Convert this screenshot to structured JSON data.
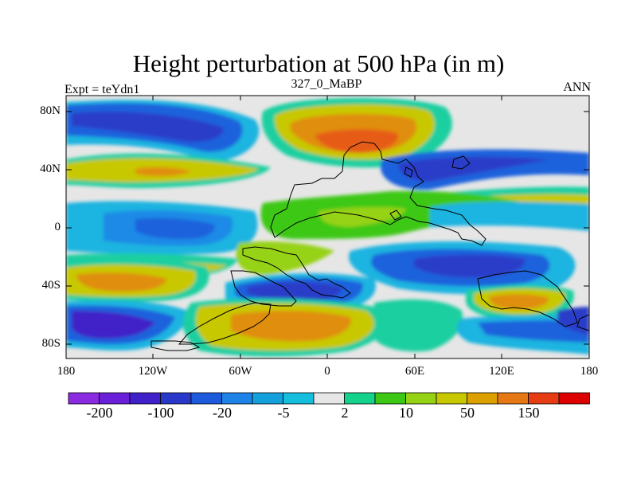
{
  "title": "Height perturbation at 500 hPa (in m)",
  "subtitle_left": "Expt = teYdn1",
  "subtitle_center": "327_0_MaBP",
  "subtitle_right": "ANN",
  "y_ticks": [
    "80N",
    "40N",
    "0",
    "40S",
    "80S"
  ],
  "x_ticks": [
    "180",
    "120W",
    "60W",
    "0",
    "60E",
    "120E",
    "180"
  ],
  "colorbar": {
    "colors": [
      "#8a2be2",
      "#6a20d8",
      "#4020c8",
      "#2838c8",
      "#1e5adc",
      "#1e82e6",
      "#14a0dc",
      "#14bedc",
      "#e6e6e6",
      "#14d28c",
      "#3cc814",
      "#96d214",
      "#c8c800",
      "#dca000",
      "#e67814",
      "#e63c14",
      "#dc0000"
    ],
    "labels": [
      "-200",
      "-100",
      "-20",
      "-5",
      "2",
      "10",
      "50",
      "150"
    ]
  },
  "colors": {
    "land_outline": "#000000",
    "neutral": "#e6e6e6"
  }
}
